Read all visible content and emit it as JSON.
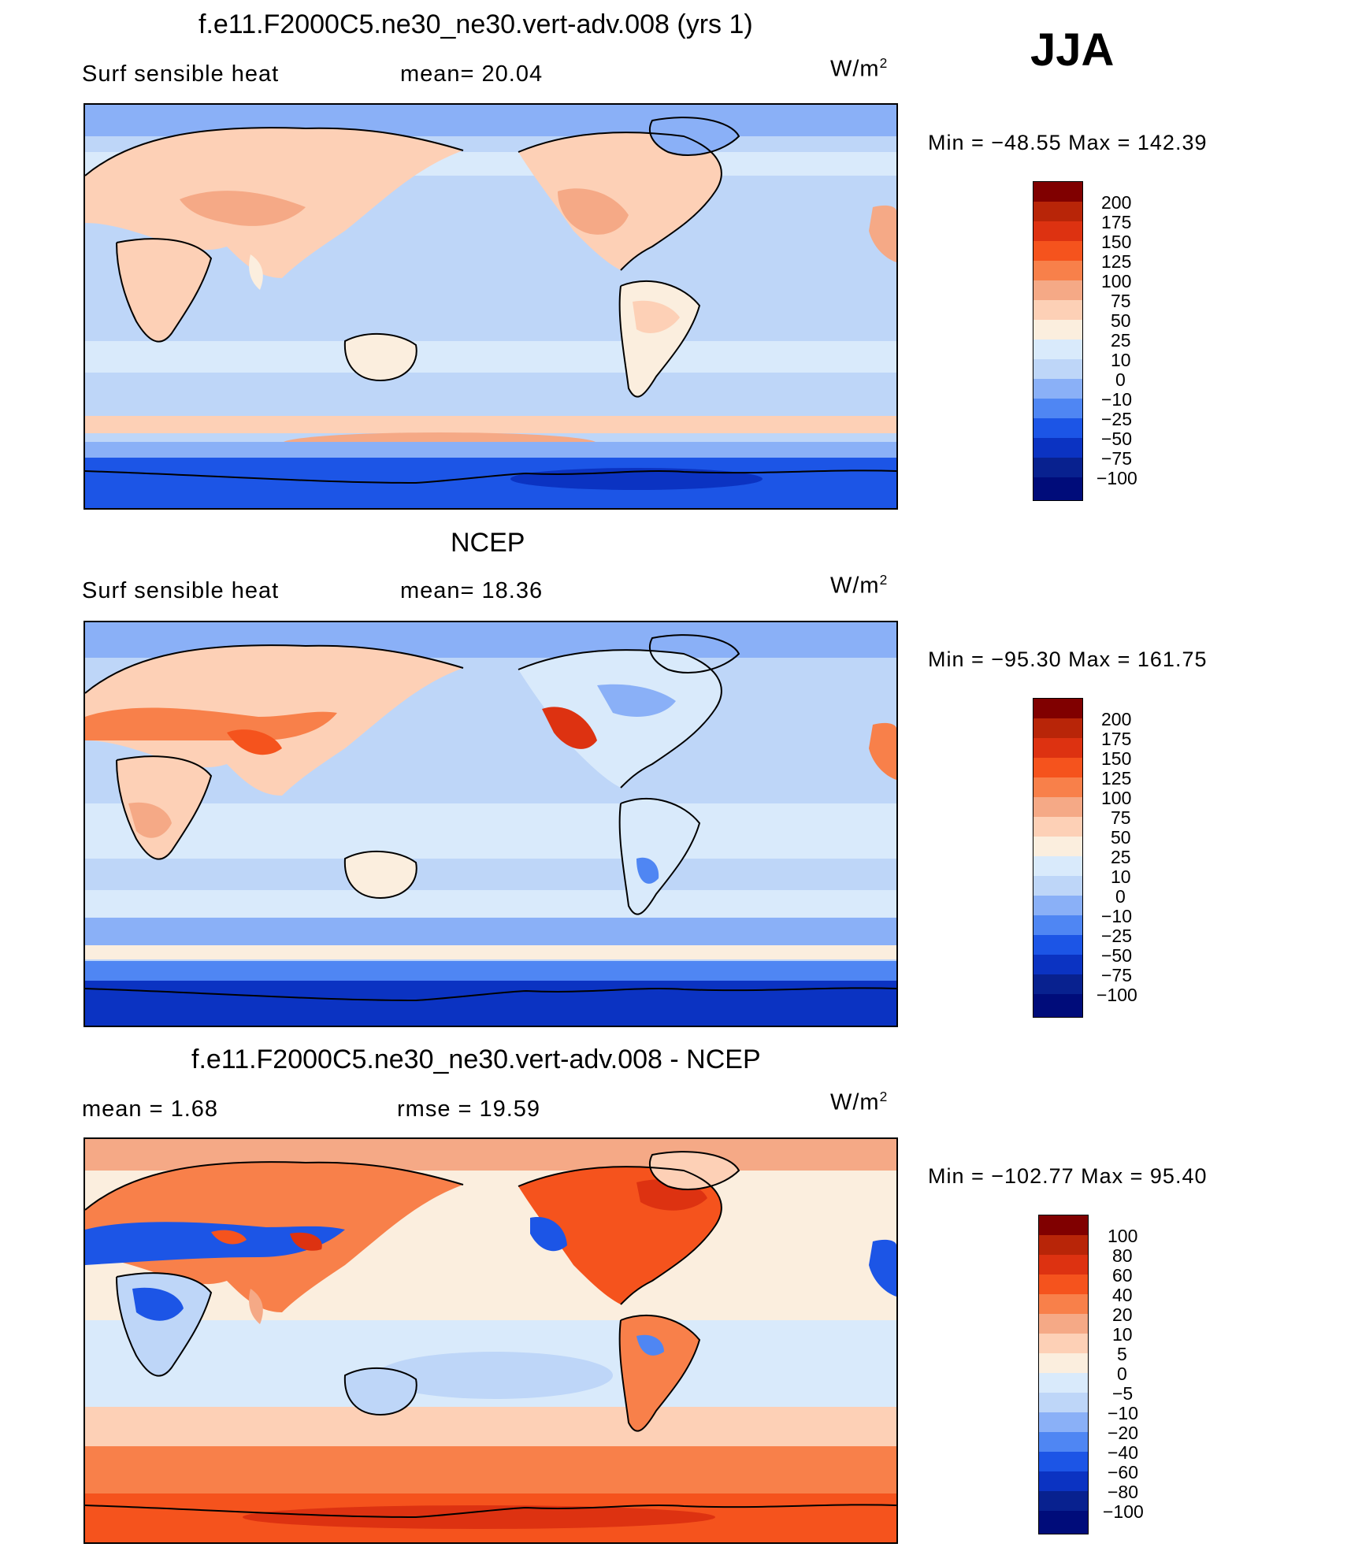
{
  "season": "JJA",
  "units_base": "W/m",
  "units_exp": "2",
  "panels": [
    {
      "title": "f.e11.F2000C5.ne30_ne30.vert-adv.008 (yrs 1)",
      "left_label": "Surf  sensible  heat",
      "right_label": "mean=   20.04",
      "minmax": "Min  =  −48.55  Max  =  142.39",
      "levels": [
        "200",
        "175",
        "150",
        "125",
        "100",
        "75",
        "50",
        "25",
        "10",
        "0",
        "−10",
        "−25",
        "−50",
        "−75",
        "−100"
      ]
    },
    {
      "title": "NCEP",
      "left_label": "Surf  sensible  heat",
      "right_label": "mean=   18.36",
      "minmax": "Min  =  −95.30  Max  =  161.75",
      "levels": [
        "200",
        "175",
        "150",
        "125",
        "100",
        "75",
        "50",
        "25",
        "10",
        "0",
        "−10",
        "−25",
        "−50",
        "−75",
        "−100"
      ]
    },
    {
      "title": "f.e11.F2000C5.ne30_ne30.vert-adv.008 - NCEP",
      "left_label": "mean  =      1.68",
      "right_label": "rmse  =     19.59",
      "minmax": "Min  =  −102.77  Max  =     95.40",
      "levels": [
        "100",
        "80",
        "60",
        "40",
        "20",
        "10",
        "5",
        "0",
        "−5",
        "−10",
        "−20",
        "−40",
        "−60",
        "−80",
        "−100"
      ]
    }
  ],
  "colorbar_colors": [
    "#800000",
    "#b82508",
    "#dd3211",
    "#f5531d",
    "#f8804a",
    "#f5a986",
    "#fdd0b6",
    "#fbeede",
    "#d9eafb",
    "#bed6f8",
    "#8ab0f7",
    "#4f86f3",
    "#1c55e6",
    "#0b33c2",
    "#08218f",
    "#000c7a"
  ]
}
